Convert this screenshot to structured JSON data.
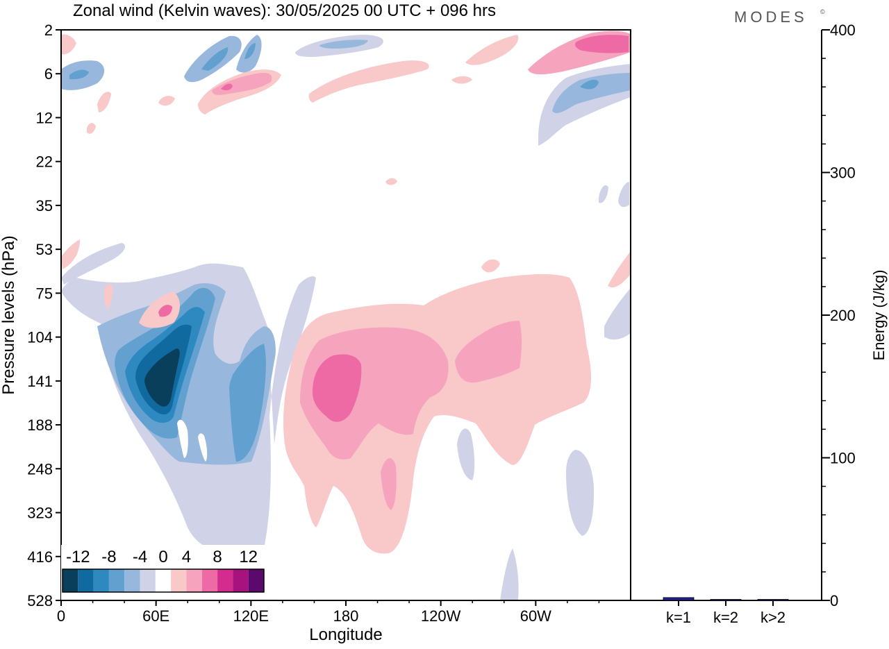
{
  "header": {
    "title": "Zonal wind (Kelvin waves):  30/05/2025  00 UTC  + 096 hrs",
    "brand": "MODES",
    "brand_mark": "©"
  },
  "chart_data": [
    {
      "type": "heatmap",
      "title": "Zonal wind (Kelvin waves):  30/05/2025  00 UTC  + 096 hrs",
      "xlabel": "Longitude",
      "ylabel": "Pressure levels (hPa)",
      "x_ticks": [
        "0",
        "60E",
        "120E",
        "180",
        "120W",
        "60W"
      ],
      "y_ticks": [
        "2",
        "6",
        "12",
        "22",
        "35",
        "53",
        "75",
        "104",
        "141",
        "188",
        "248",
        "323",
        "416",
        "528"
      ],
      "xlim": [
        0,
        360
      ],
      "colorbar": {
        "labels": [
          "-12",
          "-8",
          "-4",
          "0",
          "4",
          "8",
          "12"
        ],
        "levels": [
          -14,
          -12,
          -10,
          -8,
          -6,
          -4,
          -2,
          2,
          4,
          6,
          8,
          10,
          12,
          14
        ],
        "colors": [
          "#0a3f5c",
          "#116a9f",
          "#2d89c0",
          "#62a1cf",
          "#97b8dc",
          "#d0d3e8",
          "#ffffff",
          "#f9c8c8",
          "#f6a3bd",
          "#ee6aa4",
          "#d42b8e",
          "#a8127e",
          "#5a0a6a"
        ]
      },
      "features": [
        {
          "sign": "negative",
          "peak": -14,
          "lon": 62,
          "level": "141"
        },
        {
          "sign": "negative",
          "peak": -6,
          "lon": 110,
          "level": "141"
        },
        {
          "sign": "positive",
          "peak": 8,
          "lon": 175,
          "level": "141"
        },
        {
          "sign": "positive",
          "peak": 6,
          "lon": 255,
          "level": "104"
        },
        {
          "sign": "positive",
          "peak": 4,
          "lon": 200,
          "level": "323"
        },
        {
          "sign": "negative",
          "peak": -4,
          "lon": 330,
          "level": "248"
        },
        {
          "sign": "negative",
          "peak": -6,
          "lon": 335,
          "level": "6"
        },
        {
          "sign": "positive",
          "peak": 8,
          "lon": 340,
          "level": "2"
        },
        {
          "sign": "negative",
          "peak": -6,
          "lon": 100,
          "level": "2"
        },
        {
          "sign": "positive",
          "peak": 8,
          "lon": 110,
          "level": "6"
        },
        {
          "sign": "negative",
          "peak": -6,
          "lon": 10,
          "level": "6"
        }
      ]
    },
    {
      "type": "bar",
      "ylabel": "Energy (J/kg)",
      "ylim": [
        0,
        400
      ],
      "y_ticks": [
        "0",
        "100",
        "200",
        "300",
        "400"
      ],
      "categories": [
        "k=1",
        "k=2",
        "k>2"
      ],
      "values": [
        2,
        0.5,
        0.5
      ],
      "colors": [
        "#1f1f8f",
        "#1f1f8f",
        "#1f1f8f"
      ]
    }
  ]
}
